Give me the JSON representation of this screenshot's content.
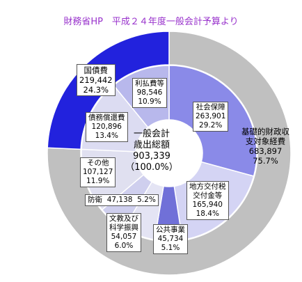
{
  "header": {
    "title": "財務省HP　平成２４年度一般会計予算より"
  },
  "center": {
    "line1": "一般会計",
    "line2": "歳出総額",
    "value": "903,339",
    "percent": "（100.0%）"
  },
  "chart_data": [
    {
      "type": "pie",
      "ring": "outer",
      "title": "財務省HP　平成２４年度一般会計予算より",
      "total": 903339,
      "slices": [
        {
          "name": "基礎的財政収支対象経費",
          "value": 683897,
          "percent": 75.7,
          "color": "#c0c0c0"
        },
        {
          "name": "国債費",
          "value": 219442,
          "percent": 24.3,
          "color": "#2222dd"
        }
      ]
    },
    {
      "type": "pie",
      "ring": "inner",
      "total": 903339,
      "slices": [
        {
          "name": "社会保障",
          "value": 263901,
          "percent": 29.2,
          "color": "#8a8ae8"
        },
        {
          "name": "地方交付税交付金等",
          "value": 165940,
          "percent": 18.4,
          "color": "#d4d4f4"
        },
        {
          "name": "公共事業",
          "value": 45734,
          "percent": 5.1,
          "color": "#7070d8"
        },
        {
          "name": "文教及び科学振興",
          "value": 54057,
          "percent": 6.0,
          "color": "#e4e4f4"
        },
        {
          "name": "防衛",
          "value": 47138,
          "percent": 5.2,
          "color": "#cfcfee"
        },
        {
          "name": "その他",
          "value": 107127,
          "percent": 11.9,
          "color": "#e0e0f0"
        },
        {
          "name": "債務償還費",
          "value": 120896,
          "percent": 13.4,
          "color": "#dcdcf2"
        },
        {
          "name": "利払費等",
          "value": 98546,
          "percent": 10.9,
          "color": "#b8b8ec"
        }
      ]
    }
  ],
  "labels": {
    "kiso": {
      "l1": "基礎的財政収",
      "l2": "支対象経費",
      "v": "683,897",
      "p": "75.7%"
    },
    "kokusai": {
      "l1": "国債費",
      "v": "219,442",
      "p": "24.3%"
    },
    "shakai": {
      "l1": "社会保障",
      "v": "263,901",
      "p": "29.2%"
    },
    "chiho": {
      "l1": "地方交付税",
      "l2": "交付金等",
      "v": "165,940",
      "p": "18.4%"
    },
    "koukyo": {
      "l1": "公共事業",
      "v": "45,734",
      "p": "5.1%"
    },
    "bunkyo": {
      "l1": "文教及び",
      "l2": "科学振興",
      "v": "54,057",
      "p": "6.0%"
    },
    "boei": {
      "l1": "防衛",
      "v": "47,138",
      "p": "5.2%"
    },
    "sonota": {
      "l1": "その他",
      "v": "107,127",
      "p": "11.9%"
    },
    "saimu": {
      "l1": "債務償還費",
      "v": "120,896",
      "p": "13.4%"
    },
    "riharai": {
      "l1": "利払費等",
      "v": "98,546",
      "p": "10.9%"
    }
  }
}
